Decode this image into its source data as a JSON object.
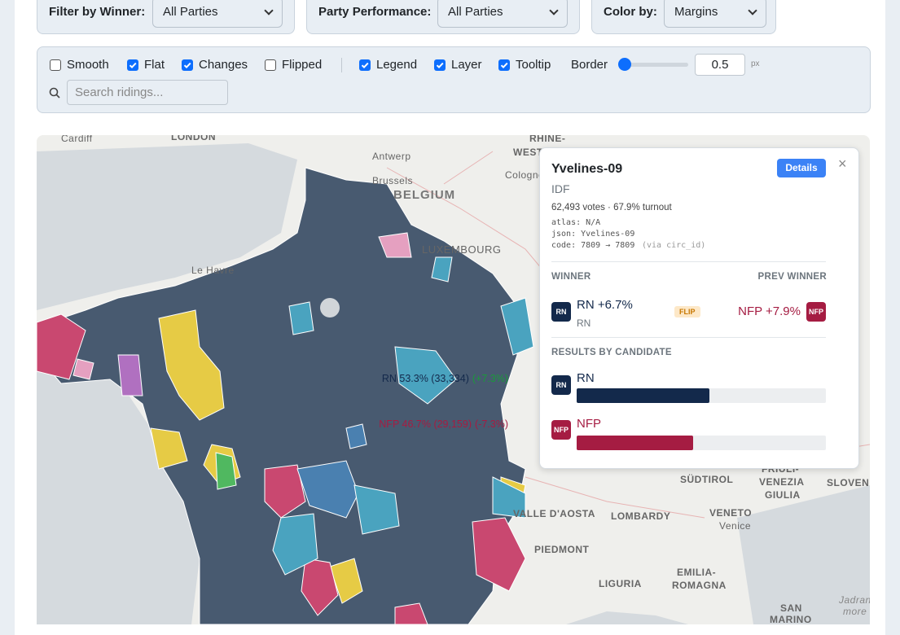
{
  "filters": [
    {
      "label": "Filter by Winner:",
      "value": "All Parties"
    },
    {
      "label": "Party Performance:",
      "value": "All Parties"
    },
    {
      "label": "Color by:",
      "value": "Margins"
    }
  ],
  "toggles": [
    {
      "label": "Smooth",
      "checked": false
    },
    {
      "label": "Flat",
      "checked": true
    },
    {
      "label": "Changes",
      "checked": true
    },
    {
      "label": "Flipped",
      "checked": false
    },
    {
      "label": "Legend",
      "checked": true
    },
    {
      "label": "Layer",
      "checked": true
    },
    {
      "label": "Tooltip",
      "checked": true
    }
  ],
  "border": {
    "label": "Border",
    "value": "0.5",
    "unit": "px"
  },
  "search": {
    "placeholder": "Search ridings..."
  },
  "map_labels": [
    "Cardiff",
    "LONDON",
    "RHINE-",
    "WEST",
    "Antwerp",
    "Brussels",
    "Cologne",
    "BELGIUM",
    "LUXEMBOURG",
    "Le Havre",
    "SÜDTIROL",
    "FRIULI-",
    "VENEZIA",
    "GIULIA",
    "SLOVENI",
    "VALLE D'AOSTA",
    "LOMBARDY",
    "VENETO",
    "Venice",
    "PIEDMONT",
    "EMILIA-",
    "ROMAGNA",
    "LIGURIA",
    "SAN",
    "MARINO",
    "Jadrans",
    "more"
  ],
  "tooltip": {
    "title": "Yvelines-09",
    "button": "Details",
    "close": "×",
    "region": "IDF",
    "stats": "62,493 votes · 67.9% turnout",
    "debug": [
      "atlas: N/A",
      "json: Yvelines-09",
      "code: 7809 → 7809"
    ],
    "debug_note": "(via circ_id)",
    "winner_heading": "WINNER",
    "prev_heading": "PREV WINNER",
    "winner": {
      "badge": "RN",
      "text": "RN +6.7%",
      "sub": "RN"
    },
    "flip": "FLIP",
    "prev": {
      "text": "NFP +7.9%",
      "badge": "NFP"
    },
    "results_heading": "RESULTS BY CANDIDATE",
    "results": [
      {
        "badge": "RN",
        "name": "RN",
        "share": {
          "value": 53.3,
          "label": "RN 53.3% (33,334)"
        },
        "change": "(+7.3%)",
        "color": "#13294b"
      },
      {
        "badge": "NFP",
        "name": "NFP",
        "share": {
          "value": 46.7,
          "label": "NFP 46.7% (29,159)"
        },
        "change": "(-7.3%)",
        "color": "#a51c42"
      }
    ]
  }
}
